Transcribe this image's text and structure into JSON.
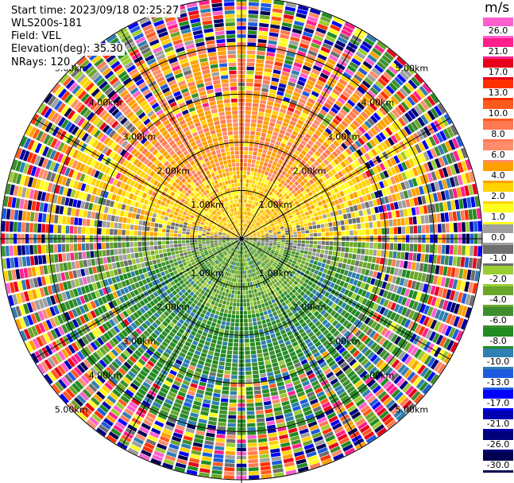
{
  "header": {
    "start_time": "Start time: 2023/09/18 02:25:27",
    "instrument": "WLS200s-181",
    "field": "Field: VEL",
    "elevation": "Elevation(deg): 35.30",
    "nrays": "NRays: 120"
  },
  "colorbar": {
    "title": "m/s",
    "labels": [
      "26.0",
      "21.0",
      "17.0",
      "13.0",
      "10.0",
      "8.0",
      "6.0",
      "4.0",
      "2.0",
      "1.0",
      "0.0",
      "-1.0",
      "-2.0",
      "-4.0",
      "-6.0",
      "-8.0",
      "-10.0",
      "-13.0",
      "-17.0",
      "-21.0",
      "-26.0",
      "-30.0"
    ],
    "colors": [
      "#ff5fcf",
      "#ff1e8c",
      "#e8001a",
      "#ff3000",
      "#ff5a1e",
      "#ff7a50",
      "#ff8c6a",
      "#ffa000",
      "#ffd200",
      "#ffff1e",
      "#a0a0a0",
      "#6e6e6e",
      "#9acd32",
      "#6aa62a",
      "#3e8e2e",
      "#228b22",
      "#2f7fb0",
      "#1e5adf",
      "#0000ff",
      "#0000b0",
      "#00007a",
      "#000050"
    ]
  },
  "chart_data": {
    "type": "heatmap",
    "title": "",
    "field": "VEL",
    "units": "m/s",
    "elevation_deg": 35.3,
    "n_rays": 120,
    "range_ring_labels": [
      "1.00km",
      "2.00km",
      "3.00km",
      "4.00km",
      "5.00km"
    ],
    "max_range_km": 5.0,
    "pattern": "near-range: positive velocities (yellow/orange) to the north, negative (green) to the south; beyond ~4 km noisy multicolor returns"
  }
}
